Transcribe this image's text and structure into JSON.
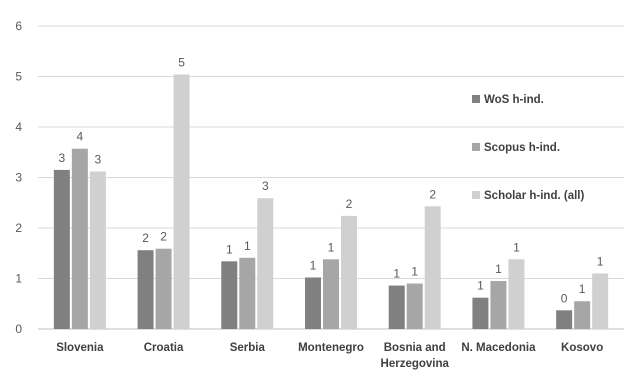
{
  "chart_data": {
    "type": "bar",
    "title": "",
    "xlabel": "",
    "ylabel": "",
    "ylim": [
      0,
      6
    ],
    "yticks": [
      0,
      1,
      2,
      3,
      4,
      5,
      6
    ],
    "grid": "horizontal",
    "legend_position": "right",
    "categories": [
      [
        "Slovenia"
      ],
      [
        "Croatia"
      ],
      [
        "Serbia"
      ],
      [
        "Montenegro"
      ],
      [
        "Bosnia and",
        "Herzegovina"
      ],
      [
        "N. Macedonia"
      ],
      [
        "Kosovo"
      ]
    ],
    "series": [
      {
        "name": "WoS h-ind.",
        "color": "#808080",
        "values": [
          3.15,
          1.56,
          1.34,
          1.02,
          0.86,
          0.62,
          0.37
        ],
        "labels": [
          "3",
          "2",
          "1",
          "1",
          "1",
          "1",
          "0"
        ]
      },
      {
        "name": "Scopus h-ind.",
        "color": "#a6a6a6",
        "values": [
          3.57,
          1.59,
          1.41,
          1.38,
          0.9,
          0.95,
          0.55
        ],
        "labels": [
          "4",
          "2",
          "1",
          "1",
          "1",
          "1",
          "1"
        ]
      },
      {
        "name": "Scholar h-ind. (all)",
        "color": "#d0d0d0",
        "values": [
          3.12,
          5.04,
          2.59,
          2.24,
          2.43,
          1.38,
          1.1
        ],
        "labels": [
          "3",
          "5",
          "3",
          "2",
          "2",
          "1",
          "1"
        ]
      }
    ]
  }
}
